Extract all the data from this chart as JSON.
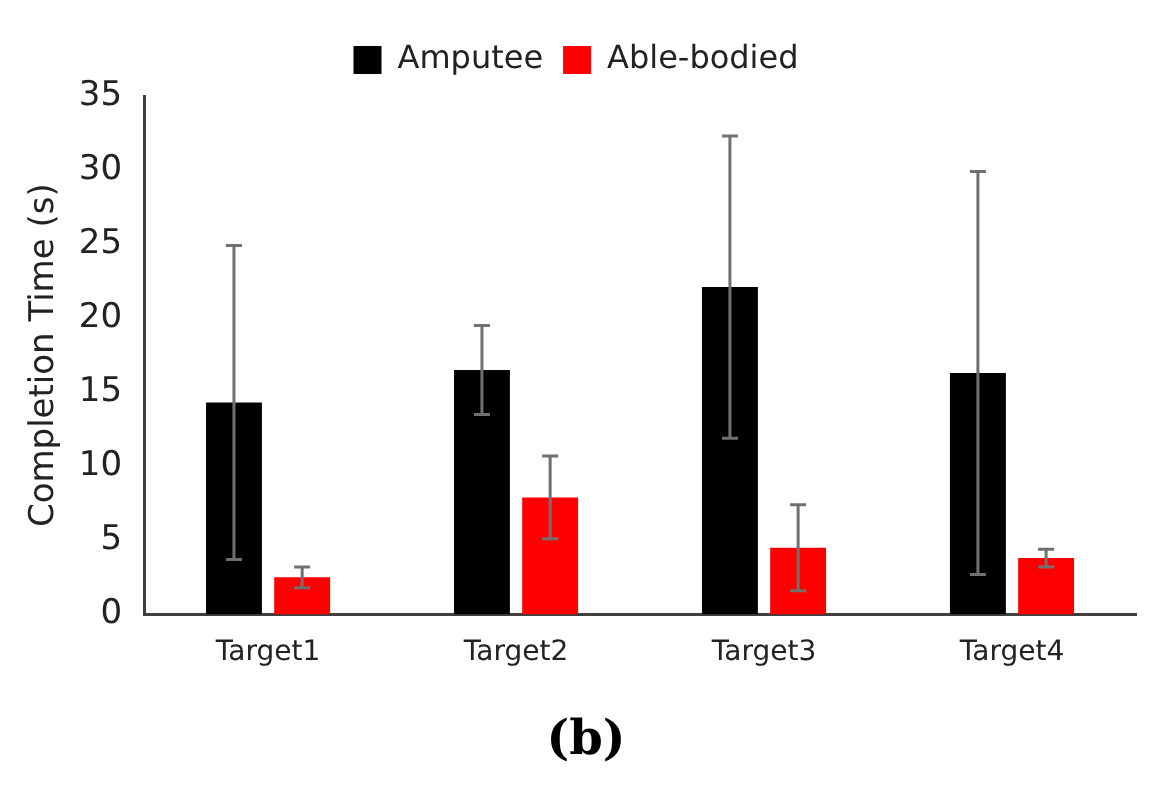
{
  "chart_data": {
    "type": "bar",
    "ylabel": "Completion Time (s)",
    "categories": [
      "Target1",
      "Target2",
      "Target3",
      "Target4"
    ],
    "series": [
      {
        "name": "Amputee",
        "color": "#000000",
        "values": [
          14.3,
          16.5,
          22.1,
          16.3
        ],
        "errors": [
          10.6,
          3.0,
          10.2,
          13.6
        ]
      },
      {
        "name": "Able-bodied",
        "color": "#ff0000",
        "values": [
          2.5,
          7.9,
          4.5,
          3.8
        ],
        "errors": [
          0.7,
          2.8,
          2.9,
          0.6
        ]
      }
    ],
    "ylim": [
      0,
      35
    ],
    "yticks": [
      0,
      5,
      10,
      15,
      20,
      25,
      30,
      35
    ],
    "grid": false,
    "legend": "top",
    "annotations": [
      "(b)"
    ]
  }
}
